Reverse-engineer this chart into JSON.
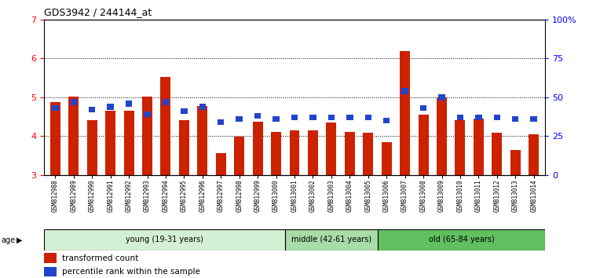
{
  "title": "GDS3942 / 244144_at",
  "samples": [
    "GSM812988",
    "GSM812989",
    "GSM812990",
    "GSM812991",
    "GSM812992",
    "GSM812993",
    "GSM812994",
    "GSM812995",
    "GSM812996",
    "GSM812997",
    "GSM812998",
    "GSM812999",
    "GSM813000",
    "GSM813001",
    "GSM813002",
    "GSM813003",
    "GSM813004",
    "GSM813005",
    "GSM813006",
    "GSM813007",
    "GSM813008",
    "GSM813009",
    "GSM813010",
    "GSM813011",
    "GSM813012",
    "GSM813013",
    "GSM813014"
  ],
  "red_values": [
    4.88,
    5.02,
    4.42,
    4.66,
    4.65,
    5.02,
    5.52,
    4.42,
    4.78,
    3.56,
    3.98,
    4.38,
    4.12,
    4.15,
    4.15,
    4.35,
    4.12,
    4.08,
    3.85,
    6.18,
    4.55,
    5.0,
    4.42,
    4.45,
    4.1,
    3.65,
    4.05
  ],
  "blue_pcts": [
    43,
    47,
    42,
    44,
    46,
    39,
    47,
    41,
    44,
    34,
    36,
    38,
    36,
    37,
    37,
    37,
    37,
    37,
    35,
    54,
    43,
    50,
    37,
    37,
    37,
    36,
    36
  ],
  "groups": [
    {
      "label": "young (19-31 years)",
      "start": 0,
      "end": 13,
      "color": "#d4f0d4"
    },
    {
      "label": "middle (42-61 years)",
      "start": 13,
      "end": 18,
      "color": "#a8dca8"
    },
    {
      "label": "old (65-84 years)",
      "start": 18,
      "end": 27,
      "color": "#60c060"
    }
  ],
  "ylim_left": [
    3.0,
    7.0
  ],
  "ylim_right": [
    0,
    100
  ],
  "yticks_left": [
    3,
    4,
    5,
    6,
    7
  ],
  "yticks_right": [
    0,
    25,
    50,
    75,
    100
  ],
  "ytick_labels_right": [
    "0",
    "25",
    "50",
    "75",
    "100%"
  ],
  "bar_width": 0.55,
  "red_color": "#cc2200",
  "blue_color": "#2244cc",
  "background_plot": "#ffffff",
  "grid_color": "#000000",
  "legend_red": "transformed count",
  "legend_blue": "percentile rank within the sample"
}
